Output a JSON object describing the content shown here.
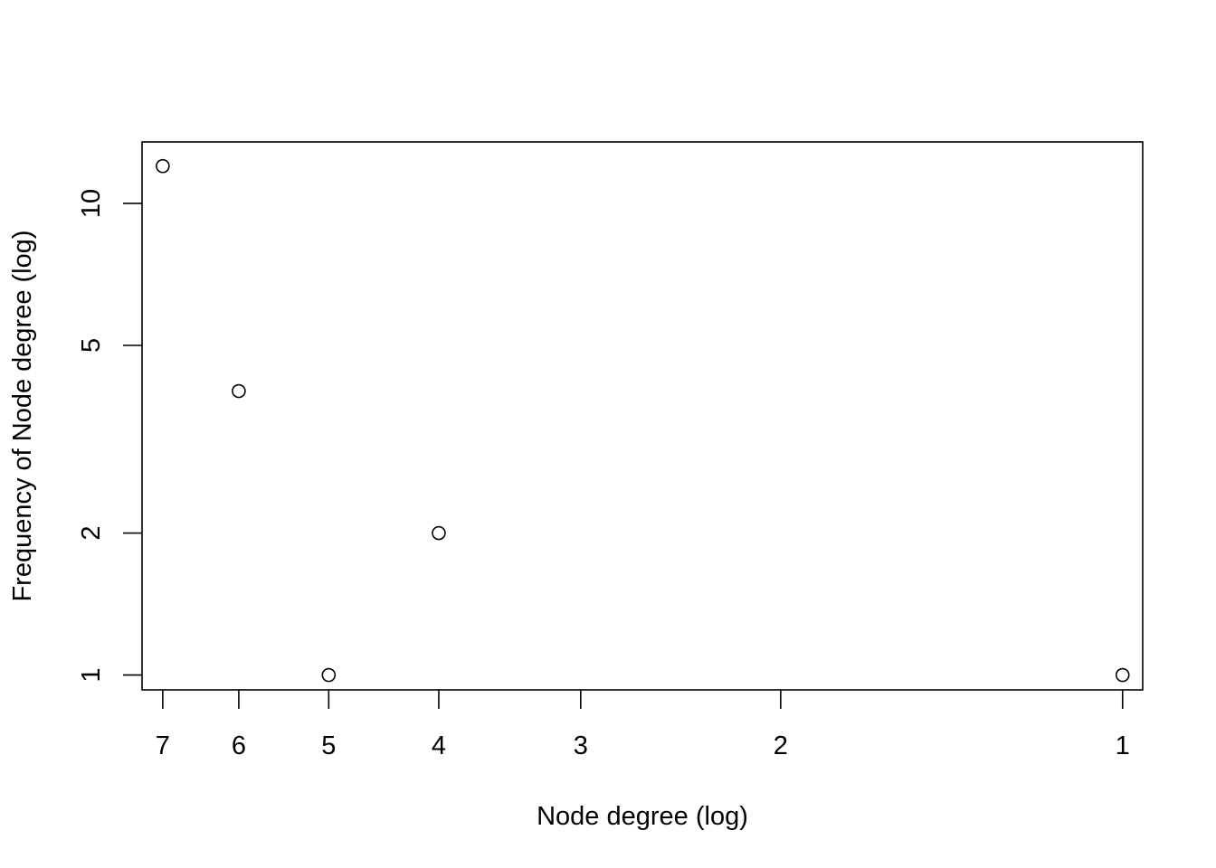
{
  "chart_data": {
    "type": "scatter",
    "title": "",
    "xlabel": "Node degree (log)",
    "ylabel": "Frequency of Node degree (log)",
    "x_scale": "log",
    "y_scale": "log",
    "x_reversed": true,
    "xlim": [
      7.3,
      0.96
    ],
    "ylim": [
      0.93,
      13.5
    ],
    "x_ticks": [
      7,
      6,
      5,
      4,
      3,
      2,
      1
    ],
    "y_ticks": [
      1,
      2,
      5,
      10
    ],
    "grid": false,
    "legend": "none",
    "marker": "open-circle",
    "color": "#000000",
    "points": [
      {
        "x": 7,
        "y": 12
      },
      {
        "x": 6,
        "y": 4
      },
      {
        "x": 5,
        "y": 1
      },
      {
        "x": 4,
        "y": 2
      },
      {
        "x": 1,
        "y": 1
      }
    ]
  }
}
